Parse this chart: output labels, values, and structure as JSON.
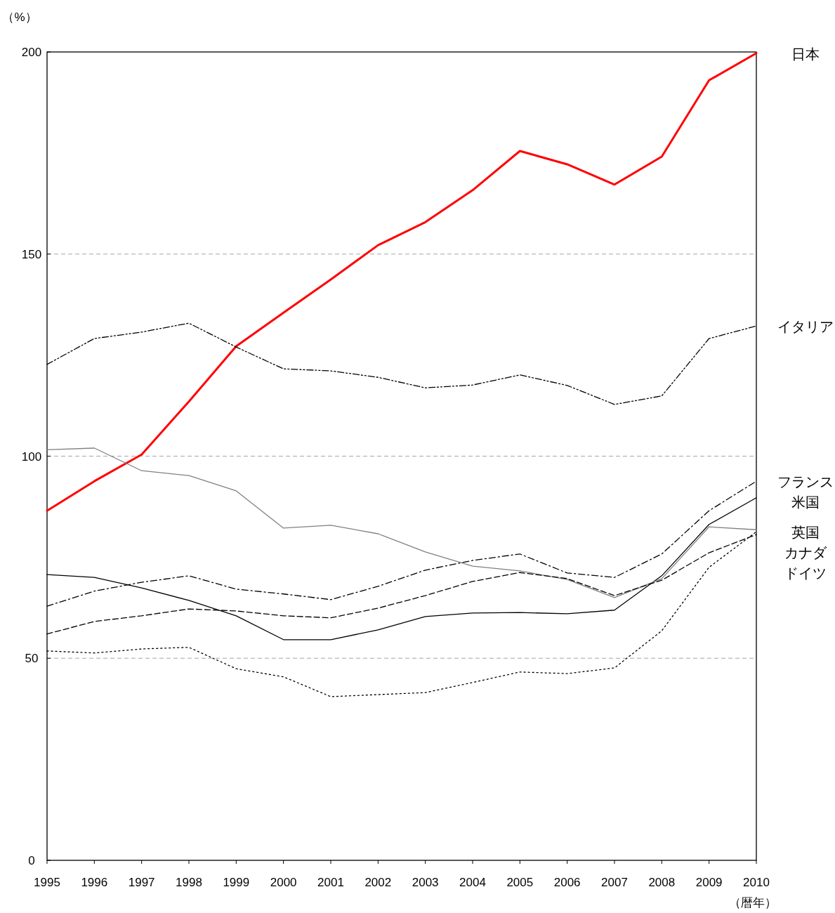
{
  "chart_data": {
    "type": "line",
    "ylabel": "（%）",
    "xlabel": "（暦年）",
    "x": [
      1995,
      1996,
      1997,
      1998,
      1999,
      2000,
      2001,
      2002,
      2003,
      2004,
      2005,
      2006,
      2007,
      2008,
      2009,
      2010
    ],
    "xlim": [
      1995,
      2010
    ],
    "xticks": [
      1995,
      1996,
      1997,
      1998,
      1999,
      2000,
      2001,
      2002,
      2003,
      2004,
      2005,
      2006,
      2007,
      2008,
      2009,
      2010
    ],
    "ylim": [
      0,
      200
    ],
    "yticks": [
      0,
      50,
      100,
      150,
      200
    ],
    "grid": "y",
    "marker": "none",
    "series": [
      {
        "name": "日本",
        "color": "#ff0000",
        "line_style": "solid",
        "values": [
          86.5,
          93.8,
          100.4,
          113.5,
          127.2,
          135.5,
          143.7,
          152.2,
          157.9,
          165.8,
          175.5,
          172.2,
          167.2,
          174.1,
          193.0,
          199.7
        ]
      },
      {
        "name": "イタリア",
        "color": "#000000",
        "line_style": "dashdotdot",
        "values": [
          122.7,
          129.1,
          130.7,
          132.9,
          127.0,
          121.6,
          121.1,
          119.5,
          116.9,
          117.6,
          120.1,
          117.5,
          112.8,
          114.9,
          129.1,
          132.2
        ]
      },
      {
        "name": "フランス",
        "color": "#000000",
        "line_style": "dashdot",
        "values": [
          62.9,
          66.6,
          68.8,
          70.4,
          67.1,
          65.9,
          64.5,
          67.8,
          71.8,
          74.2,
          75.8,
          71.1,
          70.0,
          75.8,
          86.5,
          93.8
        ]
      },
      {
        "name": "米国",
        "color": "#000000",
        "line_style": "solid",
        "values": [
          70.7,
          70.0,
          67.4,
          64.3,
          60.5,
          54.6,
          54.6,
          57.0,
          60.3,
          61.2,
          61.3,
          61.0,
          61.9,
          70.4,
          83.1,
          89.7
        ]
      },
      {
        "name": "英国",
        "color": "#000000",
        "line_style": "dotted",
        "values": [
          51.8,
          51.3,
          52.3,
          52.7,
          47.4,
          45.4,
          40.5,
          41.0,
          41.5,
          44.0,
          46.6,
          46.2,
          47.6,
          56.8,
          72.5,
          81.3
        ]
      },
      {
        "name": "カナダ",
        "color": "#808080",
        "line_style": "solid",
        "values": [
          101.6,
          102.0,
          96.4,
          95.2,
          91.4,
          82.2,
          82.9,
          80.8,
          76.3,
          72.8,
          71.6,
          69.5,
          65.0,
          69.7,
          82.5,
          81.8
        ]
      },
      {
        "name": "ドイツ",
        "color": "#000000",
        "line_style": "dashed",
        "values": [
          56.0,
          59.1,
          60.5,
          62.2,
          61.7,
          60.5,
          60.0,
          62.4,
          65.5,
          69.0,
          71.2,
          69.7,
          65.5,
          69.3,
          76.1,
          80.6
        ]
      }
    ]
  }
}
